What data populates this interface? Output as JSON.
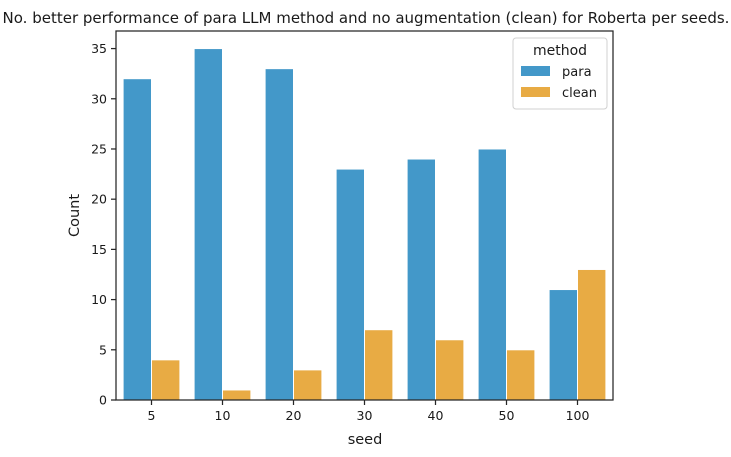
{
  "chart_data": {
    "type": "bar",
    "title": "No. better performance of para LLM method and no augmentation (clean) for Roberta per seeds.",
    "xlabel": "seed",
    "ylabel": "Count",
    "categories": [
      "5",
      "10",
      "20",
      "30",
      "40",
      "50",
      "100"
    ],
    "series": [
      {
        "name": "para",
        "color": "#4398c9",
        "values": [
          32,
          35,
          33,
          23,
          24,
          25,
          11
        ]
      },
      {
        "name": "clean",
        "color": "#e8ab44",
        "values": [
          4,
          1,
          3,
          7,
          6,
          5,
          13
        ]
      }
    ],
    "ylim": [
      0,
      36.75
    ],
    "yticks": [
      0,
      5,
      10,
      15,
      20,
      25,
      30,
      35
    ],
    "grid": false,
    "legend": {
      "title": "method",
      "position": "top-right"
    }
  }
}
